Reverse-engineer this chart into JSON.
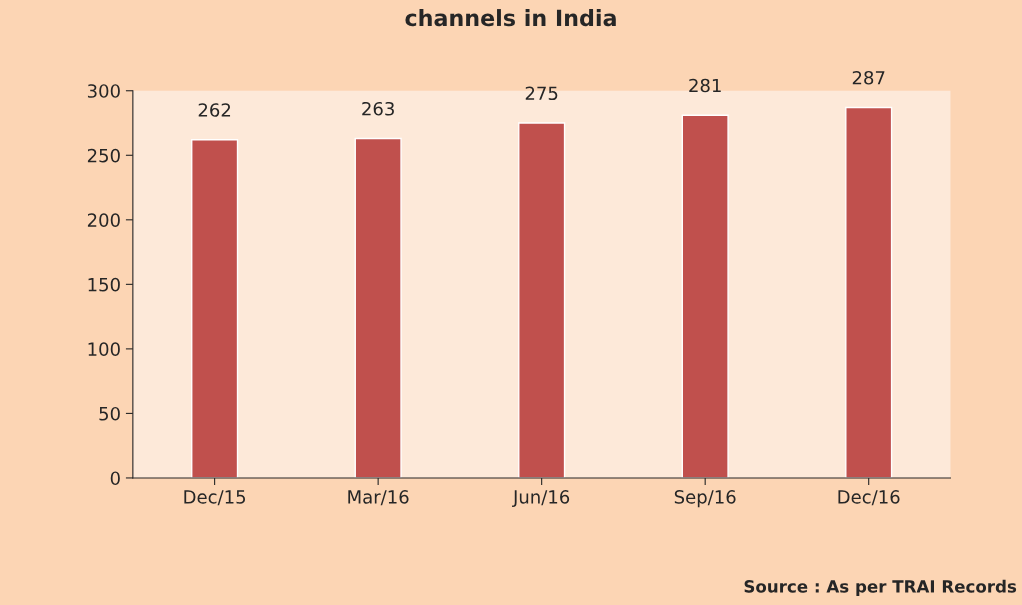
{
  "chart_data": {
    "type": "bar",
    "title": "channels in India",
    "categories": [
      "Dec/15",
      "Mar/16",
      "Jun/16",
      "Sep/16",
      "Dec/16"
    ],
    "values": [
      262,
      263,
      275,
      281,
      287
    ],
    "color": "#c0504d",
    "ylim": [
      0,
      300
    ],
    "yticks": [
      0,
      50,
      100,
      150,
      200,
      250,
      300
    ],
    "grid": false,
    "data_labels": true,
    "annotations": [
      "Source : As per TRAI Records"
    ]
  }
}
